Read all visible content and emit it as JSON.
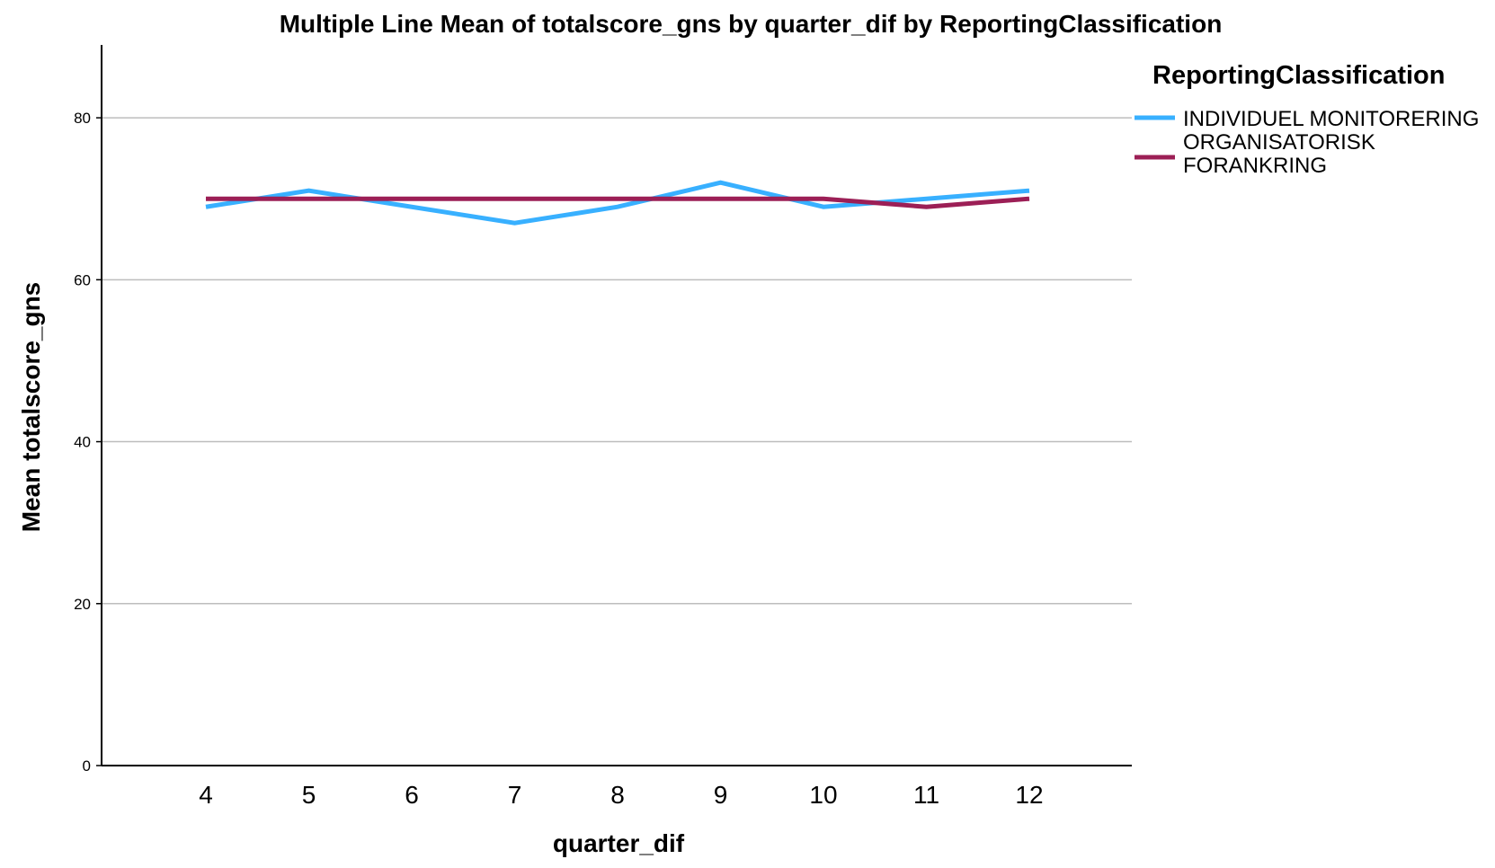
{
  "chart_data": {
    "type": "line",
    "title": "Multiple Line Mean of totalscore_gns by quarter_dif by ReportingClassification",
    "xlabel": "quarter_dif",
    "ylabel": "Mean totalscore_gns",
    "categories": [
      "4",
      "5",
      "6",
      "7",
      "8",
      "9",
      "10",
      "11",
      "12"
    ],
    "ylim": [
      0,
      89
    ],
    "yticks": [
      "0",
      "20",
      "40",
      "60",
      "80"
    ],
    "grid": true,
    "legend_title": "ReportingClassification",
    "legend_position": "right",
    "series": [
      {
        "name": "INDIVIDUEL MONITORERING",
        "label_lines": [
          "INDIVIDUEL MONITORERING"
        ],
        "color": "#38b0ff",
        "values": [
          69,
          71,
          69,
          67,
          69,
          72,
          69,
          70,
          71
        ]
      },
      {
        "name": "ORGANISATORISK FORANKRING",
        "label_lines": [
          "ORGANISATORISK",
          "FORANKRING"
        ],
        "color": "#9c1f56",
        "values": [
          70,
          70,
          70,
          70,
          70,
          70,
          70,
          69,
          70
        ]
      }
    ]
  }
}
